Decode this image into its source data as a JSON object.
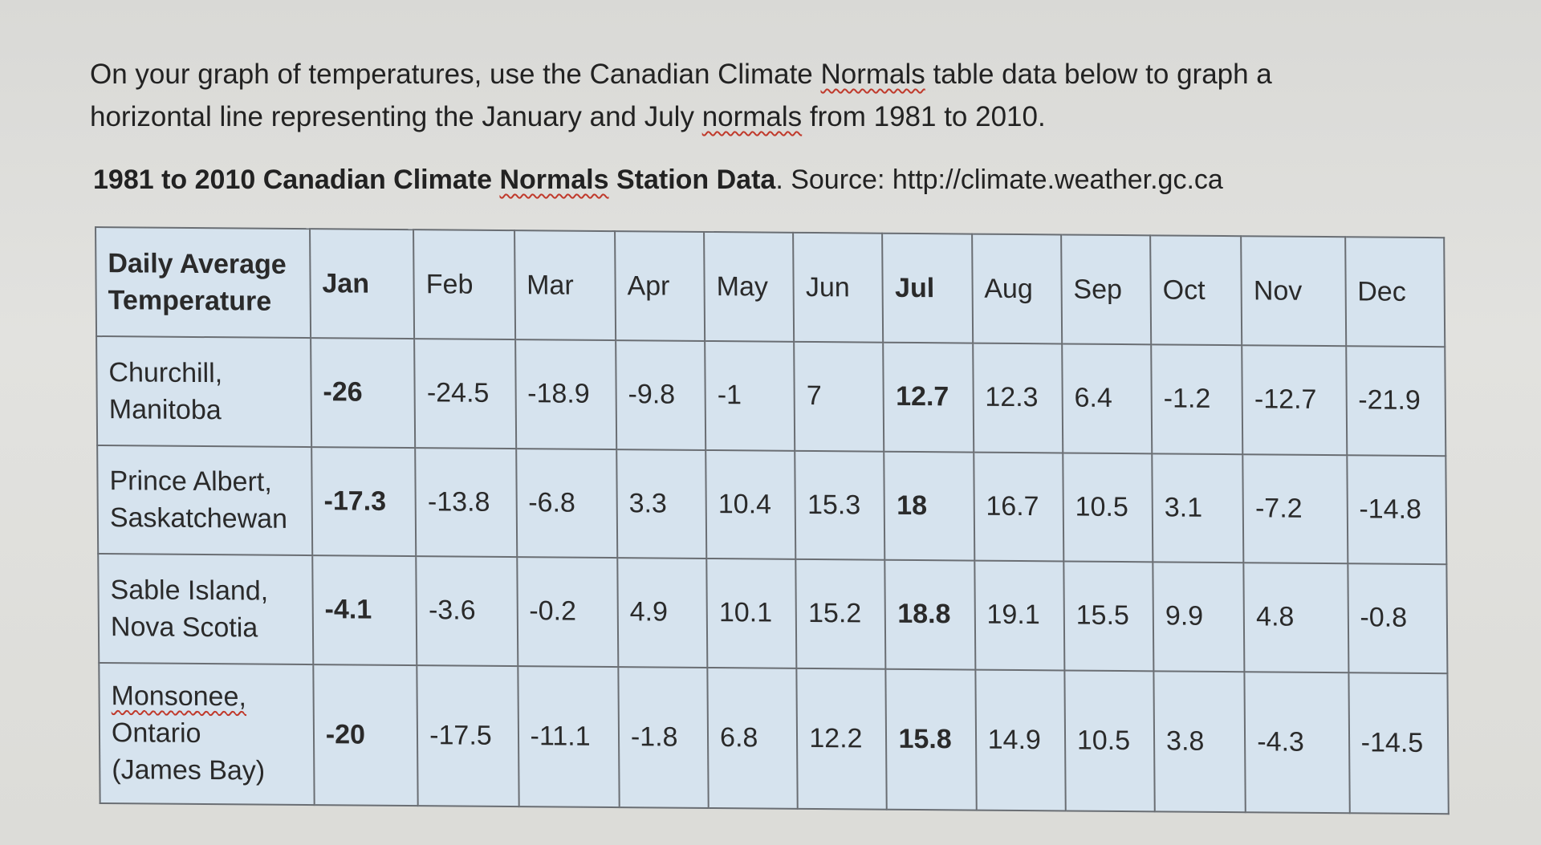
{
  "instructions": {
    "part1": "On your graph of temperatures, use the Canadian Climate ",
    "normals_word": "Normals",
    "part2": " table data below to graph a horizontal line representing the January and July ",
    "normals_word2": "normals",
    "part3": " from 1981 to 2010."
  },
  "caption": {
    "bold_prefix": "1981 to 2010 Canadian Climate ",
    "bold_squiggle": "Normals",
    "bold_suffix": " Station Data",
    "rest": ". Source: http://climate.weather.gc.ca"
  },
  "table": {
    "header_first_line1": "Daily Average",
    "header_first_line2": "Temperature",
    "months": [
      "Jan",
      "Feb",
      "Mar",
      "Apr",
      "May",
      "Jun",
      "Jul",
      "Aug",
      "Sep",
      "Oct",
      "Nov",
      "Dec"
    ],
    "rows": [
      {
        "station_line1": "Churchill,",
        "station_line2": "Manitoba",
        "station_line3": "",
        "values": [
          "-26",
          "-24.5",
          "-18.9",
          "-9.8",
          "-1",
          "7",
          "12.7",
          "12.3",
          "6.4",
          "-1.2",
          "-12.7",
          "-21.9"
        ]
      },
      {
        "station_line1": "Prince Albert,",
        "station_line2": "Saskatchewan",
        "station_line3": "",
        "values": [
          "-17.3",
          "-13.8",
          "-6.8",
          "3.3",
          "10.4",
          "15.3",
          "18",
          "16.7",
          "10.5",
          "3.1",
          "-7.2",
          "-14.8"
        ]
      },
      {
        "station_line1": "Sable Island,",
        "station_line2": "Nova Scotia",
        "station_line3": "",
        "values": [
          "-4.1",
          "-3.6",
          "-0.2",
          "4.9",
          "10.1",
          "15.2",
          "18.8",
          "19.1",
          "15.5",
          "9.9",
          "4.8",
          "-0.8"
        ]
      },
      {
        "station_line1": "Monsonee,",
        "station_line2": "Ontario",
        "station_line3": "(James Bay)",
        "values": [
          "-20",
          "-17.5",
          "-11.1",
          "-1.8",
          "6.8",
          "12.2",
          "15.8",
          "14.9",
          "10.5",
          "3.8",
          "-4.3",
          "-14.5"
        ]
      }
    ]
  },
  "colors": {
    "table_fill": "#d6e3ee",
    "spellcheck_underline": "#c0392b"
  }
}
